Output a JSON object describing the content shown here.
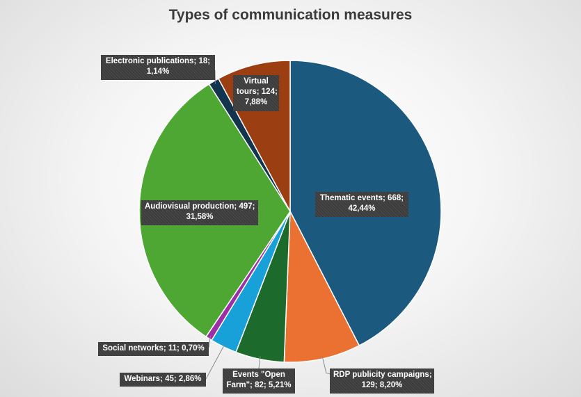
{
  "chart_data": {
    "type": "pie",
    "title": "Types of communication measures",
    "legend": "none",
    "slices": [
      {
        "name": "Thematic events",
        "value": 668,
        "percent": "42,44%",
        "color": "#1b5a7e",
        "label_lines": [
          "Thematic events; 668;",
          "42,44%"
        ]
      },
      {
        "name": "RDP publicity campaigns",
        "value": 129,
        "percent": "8,20%",
        "color": "#ea7131",
        "label_lines": [
          "RDP publicity campaigns;",
          "129; 8,20%"
        ]
      },
      {
        "name": "Events \"Open Farm\"",
        "value": 82,
        "percent": "5,21%",
        "color": "#1c6b2d",
        "label_lines": [
          "Events \"Open",
          "Farm\"; 82; 5,21%"
        ]
      },
      {
        "name": "Webinars",
        "value": 45,
        "percent": "2,86%",
        "color": "#18a0d9",
        "label_lines": [
          "Webinars; 45; 2,86%"
        ]
      },
      {
        "name": "Social networks",
        "value": 11,
        "percent": "0,70%",
        "color": "#9c2fa8",
        "label_lines": [
          "Social networks; 11; 0,70%"
        ]
      },
      {
        "name": "Audiovisual production",
        "value": 497,
        "percent": "31,58%",
        "color": "#4ea732",
        "label_lines": [
          "Audiovisual production; 497;",
          "31,58%"
        ]
      },
      {
        "name": "Electronic publications",
        "value": 18,
        "percent": "1,14%",
        "color": "#12344e",
        "label_lines": [
          "Electronic publications; 18;",
          "1,14%"
        ]
      },
      {
        "name": "Virtual tours",
        "value": 124,
        "percent": "7,88%",
        "color": "#9b3f12",
        "label_lines": [
          "Virtual",
          "tours; 124;",
          "7,88%"
        ]
      }
    ]
  }
}
